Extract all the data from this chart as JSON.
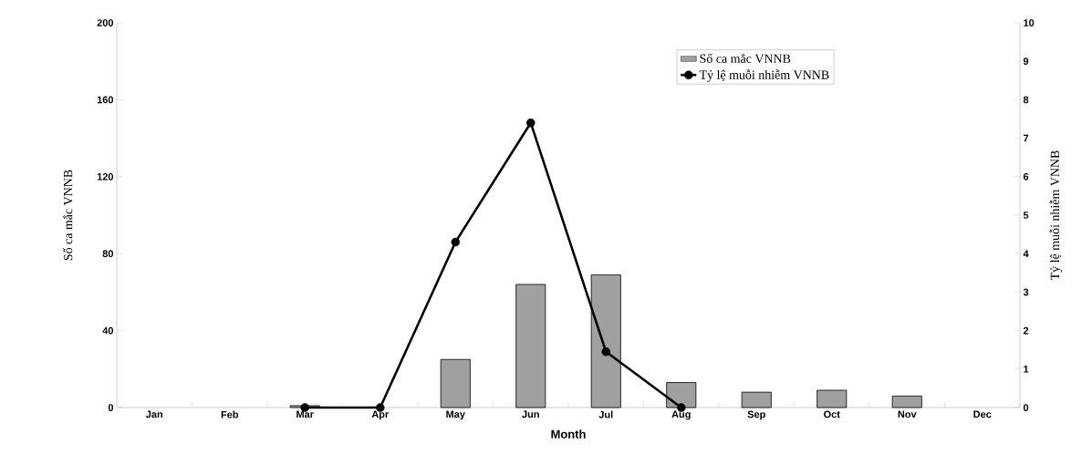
{
  "chart_data": {
    "type": "bar",
    "xlabel": "Month",
    "ylabel": "Số ca mắc VNNB",
    "y2label": "Tỷ lệ muỗi nhiễm VNNB",
    "categories": [
      "Jan",
      "Feb",
      "Mar",
      "Apr",
      "May",
      "Jun",
      "Jul",
      "Aug",
      "Sep",
      "Oct",
      "Nov",
      "Dec"
    ],
    "series": [
      {
        "name": "Số ca mắc VNNB",
        "color": "#a0a0a0",
        "values": [
          null,
          null,
          1,
          null,
          25,
          64,
          69,
          13,
          8,
          9,
          6,
          null
        ]
      },
      {
        "name": "Tỷ lệ muỗi nhiễm VNNB",
        "type": "line",
        "axis": "y2",
        "color": "#000000",
        "values": [
          null,
          null,
          0,
          0,
          4.3,
          7.4,
          1.45,
          0,
          null,
          null,
          null,
          null
        ]
      }
    ],
    "ylim": [
      0,
      200
    ],
    "yticks": [
      0,
      40,
      80,
      120,
      160,
      200
    ],
    "y2lim": [
      0,
      10
    ],
    "y2ticks": [
      0,
      1,
      2,
      3,
      4,
      5,
      6,
      7,
      8,
      9,
      10
    ],
    "marker": "circle",
    "legend": "top right",
    "grid": false
  }
}
